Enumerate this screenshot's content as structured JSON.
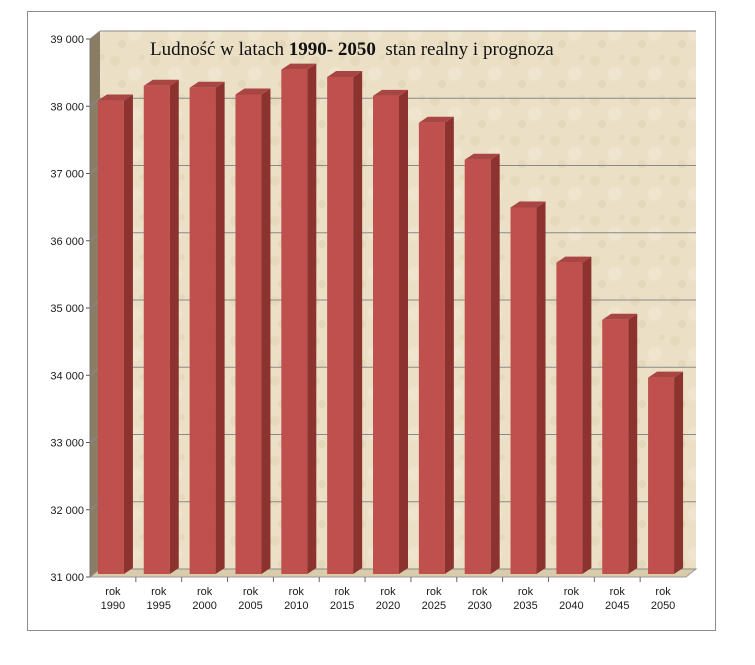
{
  "chart_data": {
    "type": "bar",
    "title_parts": [
      {
        "text": "Ludność w latach ",
        "bold": false
      },
      {
        "text": "1990- 2050",
        "bold": true
      },
      {
        "text": "  stan realny i prognoza",
        "bold": false
      }
    ],
    "categories": [
      {
        "line1": "rok",
        "line2": "1990"
      },
      {
        "line1": "rok",
        "line2": "1995"
      },
      {
        "line1": "rok",
        "line2": "2000"
      },
      {
        "line1": "rok",
        "line2": "2005"
      },
      {
        "line1": "rok",
        "line2": "2010"
      },
      {
        "line1": "rok",
        "line2": "2015"
      },
      {
        "line1": "rok",
        "line2": "2020"
      },
      {
        "line1": "rok",
        "line2": "2025"
      },
      {
        "line1": "rok",
        "line2": "2030"
      },
      {
        "line1": "rok",
        "line2": "2035"
      },
      {
        "line1": "rok",
        "line2": "2040"
      },
      {
        "line1": "rok",
        "line2": "2045"
      },
      {
        "line1": "rok",
        "line2": "2050"
      }
    ],
    "values": [
      38070,
      38290,
      38260,
      38160,
      38530,
      38420,
      38140,
      37740,
      37190,
      36480,
      35660,
      34810,
      33950
    ],
    "ylim": [
      31000,
      39000
    ],
    "yticks": [
      {
        "value": 31000,
        "label": "31 000"
      },
      {
        "value": 32000,
        "label": "32 000"
      },
      {
        "value": 33000,
        "label": "33 000"
      },
      {
        "value": 34000,
        "label": "34 000"
      },
      {
        "value": 35000,
        "label": "35 000"
      },
      {
        "value": 36000,
        "label": "36 000"
      },
      {
        "value": 37000,
        "label": "37 000"
      },
      {
        "value": 38000,
        "label": "38 000"
      },
      {
        "value": 39000,
        "label": "39 000"
      }
    ],
    "grid": true,
    "legend": "none",
    "colors": {
      "bar_front": "#c0504d",
      "bar_side": "#8c3330",
      "bar_top": "#a94542",
      "back_wall": "#e8dcc1",
      "floor": "#d9ccab",
      "side_wall": "#8a7d66",
      "gridline": "#8a8a8a"
    }
  }
}
